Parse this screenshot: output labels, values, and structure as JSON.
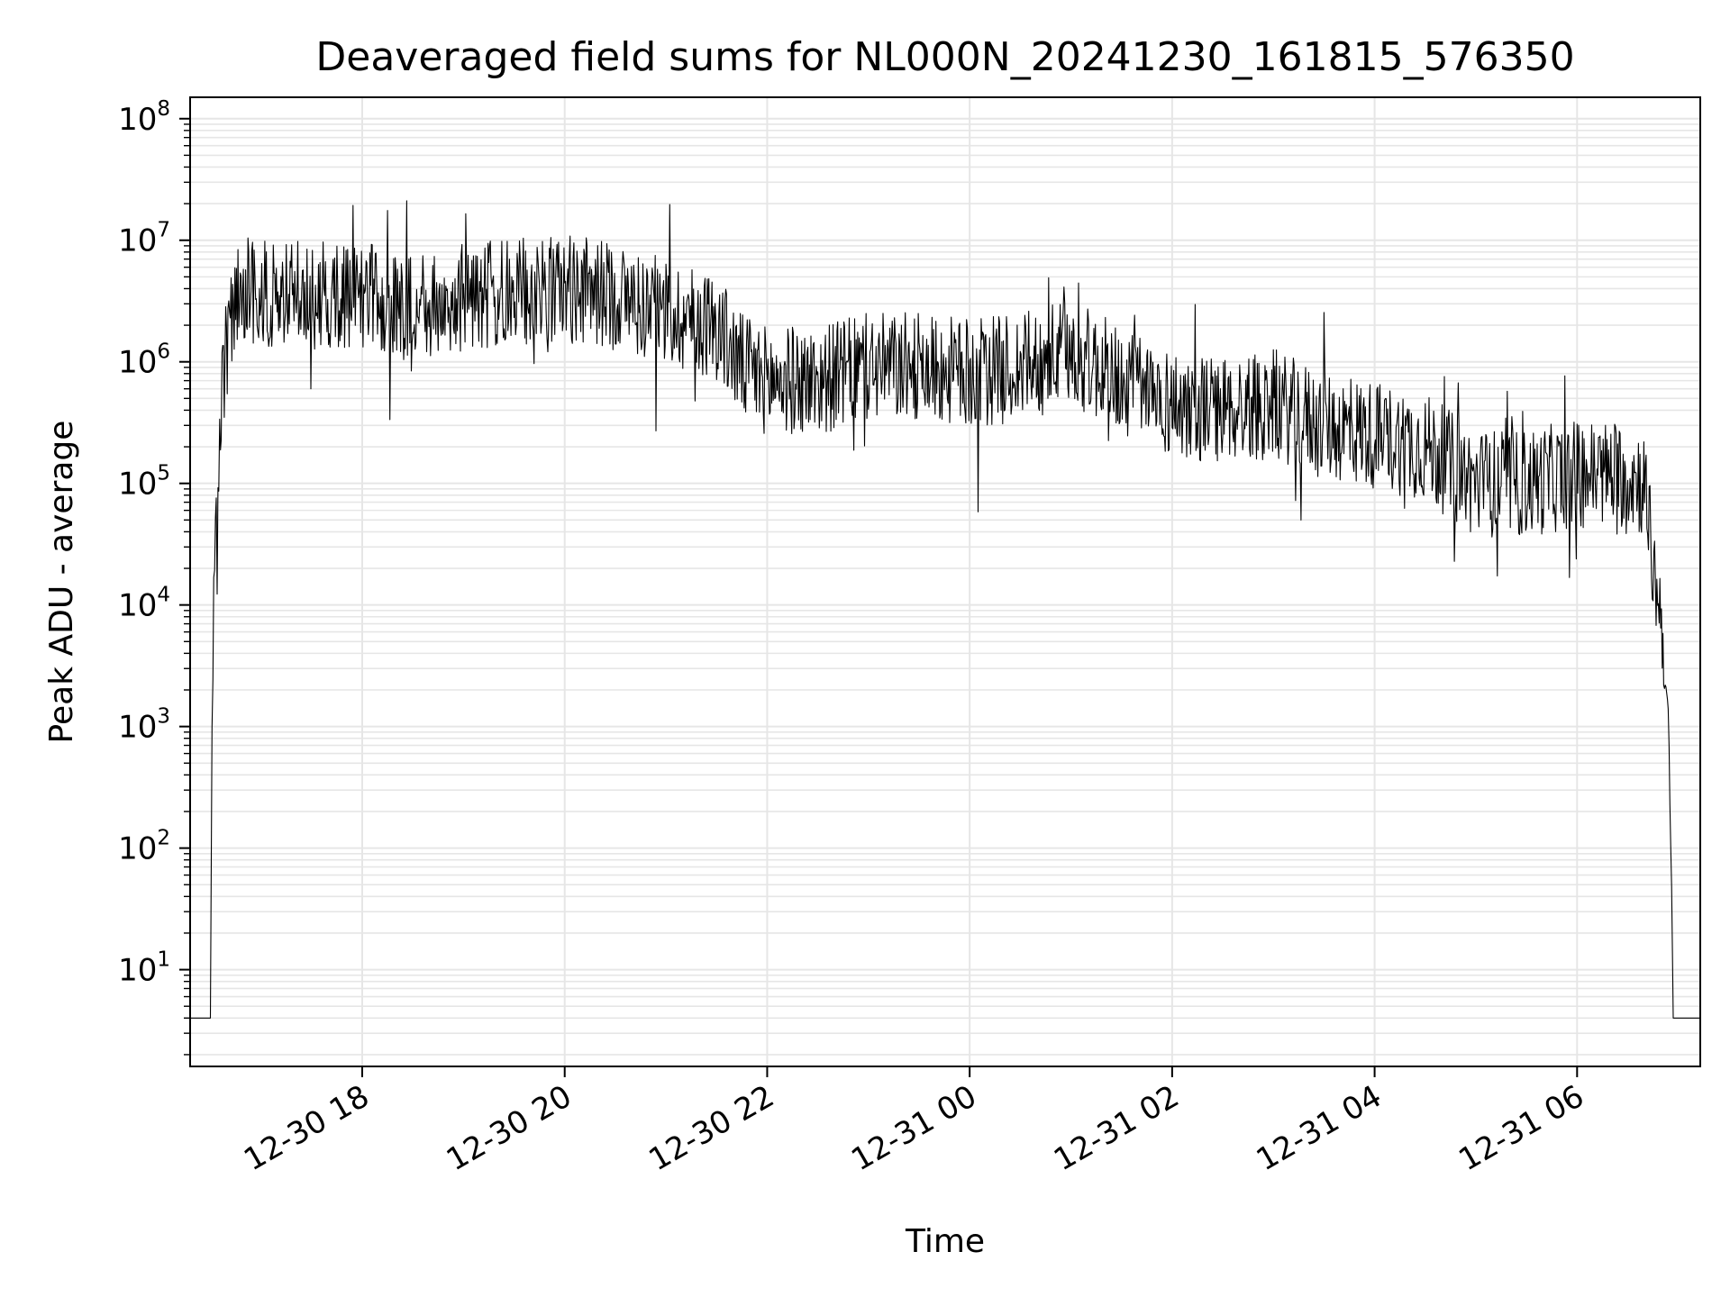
{
  "chart_data": {
    "type": "line",
    "title": "Deaveraged field sums for NL000N_20241230_161815_576350",
    "xlabel": "Time",
    "ylabel": "Peak ADU - average",
    "yscale": "log",
    "ylim": [
      1.6,
      150000000
    ],
    "xlim": [
      "2024-12-30 16:18",
      "2024-12-31 07:13"
    ],
    "grid": true,
    "line_color": "#000000",
    "grid_color": "#e6e6e6",
    "x_ticks": [
      {
        "value": "2024-12-30 18:00",
        "label": "12-30 18"
      },
      {
        "value": "2024-12-30 20:00",
        "label": "12-30 20"
      },
      {
        "value": "2024-12-30 22:00",
        "label": "12-30 22"
      },
      {
        "value": "2024-12-31 00:00",
        "label": "12-31 00"
      },
      {
        "value": "2024-12-31 02:00",
        "label": "12-31 02"
      },
      {
        "value": "2024-12-31 04:00",
        "label": "12-31 04"
      },
      {
        "value": "2024-12-31 06:00",
        "label": "12-31 06"
      }
    ],
    "y_ticks": [
      {
        "value": 10,
        "base": "10",
        "exp": "1"
      },
      {
        "value": 100,
        "base": "10",
        "exp": "2"
      },
      {
        "value": 1000,
        "base": "10",
        "exp": "3"
      },
      {
        "value": 10000,
        "base": "10",
        "exp": "4"
      },
      {
        "value": 100000,
        "base": "10",
        "exp": "5"
      },
      {
        "value": 1000000,
        "base": "10",
        "exp": "6"
      },
      {
        "value": 10000000,
        "base": "10",
        "exp": "7"
      },
      {
        "value": 100000000,
        "base": "10",
        "exp": "8"
      }
    ],
    "series": [
      {
        "x": [
          "2024-12-30 16:18",
          "2024-12-30 16:30",
          "2024-12-30 16:31",
          "2024-12-30 16:32",
          "2024-12-30 16:34",
          "2024-12-30 16:36",
          "2024-12-30 16:40",
          "2024-12-30 16:45",
          "2024-12-30 16:50",
          "2024-12-30 17:00",
          "2024-12-30 17:15",
          "2024-12-30 17:30",
          "2024-12-30 18:00",
          "2024-12-30 18:30",
          "2024-12-30 19:00",
          "2024-12-30 19:30",
          "2024-12-30 20:00",
          "2024-12-30 20:30",
          "2024-12-30 21:00",
          "2024-12-30 21:30",
          "2024-12-30 21:45",
          "2024-12-30 22:00",
          "2024-12-30 22:30",
          "2024-12-30 23:00",
          "2024-12-30 23:30",
          "2024-12-31 00:00",
          "2024-12-31 00:30",
          "2024-12-31 01:00",
          "2024-12-31 01:30",
          "2024-12-31 02:00",
          "2024-12-31 02:30",
          "2024-12-31 03:00",
          "2024-12-31 03:30",
          "2024-12-31 04:00",
          "2024-12-31 04:30",
          "2024-12-31 05:00",
          "2024-12-31 05:30",
          "2024-12-31 06:00",
          "2024-12-31 06:30",
          "2024-12-31 06:40",
          "2024-12-31 06:45",
          "2024-12-31 06:50",
          "2024-12-31 06:54",
          "2024-12-31 06:56",
          "2024-12-31 06:57",
          "2024-12-31 06:58",
          "2024-12-31 07:13"
        ],
        "y": [
          4,
          4,
          1000,
          10000,
          100000,
          300000,
          1500000,
          3000000,
          4000000,
          3500000,
          3500000,
          3500000,
          3500000,
          2500000,
          3500000,
          3500000,
          4000000,
          3500000,
          2500000,
          2000000,
          900000,
          700000,
          700000,
          900000,
          900000,
          800000,
          900000,
          1200000,
          700000,
          450000,
          400000,
          450000,
          300000,
          250000,
          200000,
          100000,
          100000,
          120000,
          120000,
          100000,
          20000,
          8000,
          1000,
          50,
          4,
          4,
          4
        ]
      }
    ]
  }
}
